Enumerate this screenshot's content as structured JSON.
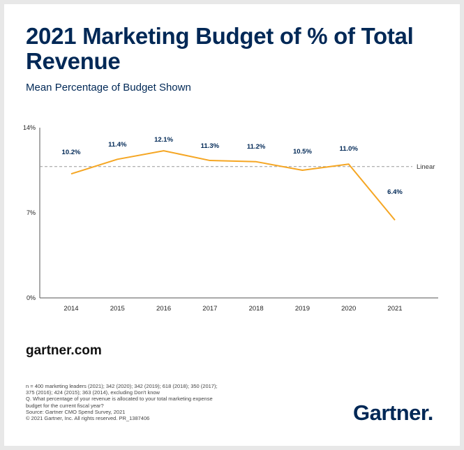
{
  "header": {
    "title": "2021 Marketing Budget of % of Total Revenue",
    "subtitle": "Mean Percentage of Budget Shown"
  },
  "chart_data": {
    "type": "line",
    "x": [
      "2014",
      "2015",
      "2016",
      "2017",
      "2018",
      "2019",
      "2020",
      "2021"
    ],
    "series": [
      {
        "values": [
          10.2,
          11.4,
          12.1,
          11.3,
          11.2,
          10.5,
          11.0,
          6.4
        ],
        "labels": [
          "10.2%",
          "11.4%",
          "12.1%",
          "11.3%",
          "11.2%",
          "10.5%",
          "11.0%",
          "6.4%"
        ],
        "color": "#f5a623"
      }
    ],
    "reference_line": {
      "label": "Linear",
      "value": 10.8,
      "style": "dashed",
      "color": "#999999"
    },
    "y_ticks": [
      {
        "value": 0,
        "label": "0%"
      },
      {
        "value": 7,
        "label": "7%"
      },
      {
        "value": 14,
        "label": "14%"
      }
    ],
    "ylim": [
      0,
      14
    ],
    "xlabel": "",
    "ylabel": "",
    "grid": false,
    "title": "2021 Marketing Budget of % of Total Revenue"
  },
  "footer": {
    "site": "gartner.com",
    "notes": [
      "n = 400 marketing leaders (2021); 342 (2020); 342 (2019); 618 (2018); 350 (2017);",
      "375 (2016); 424 (2015); 363 (2014), excluding Don't know",
      "Q. What percentage of your revenue is allocated to your total marketing expense",
      "budget for the current fiscal year?",
      "Source: Gartner CMO Spend Survey, 2021",
      "© 2021 Gartner, Inc. All rights reserved. PR_1387406"
    ],
    "brand": "Gartner"
  }
}
